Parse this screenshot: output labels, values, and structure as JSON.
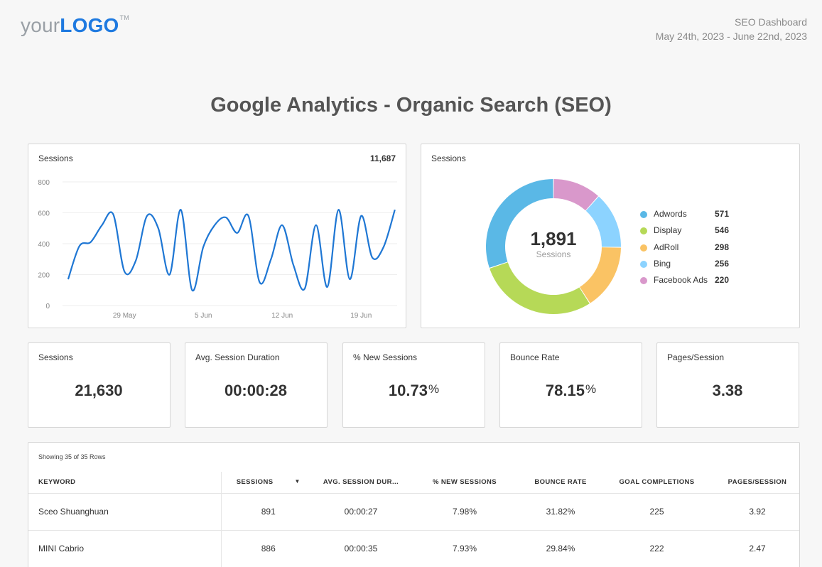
{
  "header": {
    "logo_prefix": "your",
    "logo_brand": "LOGO",
    "logo_tm": "TM",
    "report_title": "SEO Dashboard",
    "date_range": "May 24th, 2023 - June 22nd, 2023"
  },
  "page_title": "Google Analytics - Organic Search (SEO)",
  "sessions_line": {
    "title": "Sessions",
    "total": "11,687",
    "chart_data": {
      "type": "line",
      "x": [
        "2023-05-24",
        "2023-05-25",
        "2023-05-26",
        "2023-05-27",
        "2023-05-28",
        "2023-05-29",
        "2023-05-30",
        "2023-05-31",
        "2023-06-01",
        "2023-06-02",
        "2023-06-03",
        "2023-06-04",
        "2023-06-05",
        "2023-06-06",
        "2023-06-07",
        "2023-06-08",
        "2023-06-09",
        "2023-06-10",
        "2023-06-11",
        "2023-06-12",
        "2023-06-13",
        "2023-06-14",
        "2023-06-15",
        "2023-06-16",
        "2023-06-17",
        "2023-06-18",
        "2023-06-19",
        "2023-06-20",
        "2023-06-21",
        "2023-06-22"
      ],
      "values": [
        170,
        385,
        410,
        520,
        590,
        220,
        290,
        580,
        500,
        200,
        620,
        100,
        380,
        520,
        570,
        470,
        580,
        150,
        300,
        520,
        260,
        110,
        520,
        120,
        620,
        170,
        580,
        310,
        380,
        620
      ],
      "ylim": [
        0,
        800
      ],
      "yticks": [
        "800",
        "600",
        "400",
        "200",
        "0"
      ],
      "xticks": [
        "29 May",
        "5 Jun",
        "12 Jun",
        "19 Jun"
      ],
      "xtick_dates": [
        "2023-05-29",
        "2023-06-05",
        "2023-06-12",
        "2023-06-19"
      ],
      "grid": true,
      "color": "#1f77d4"
    }
  },
  "sessions_donut": {
    "title": "Sessions",
    "center_total": "1,891",
    "center_label": "Sessions",
    "chart_data": {
      "type": "pie",
      "categories": [
        "Adwords",
        "Display",
        "AdRoll",
        "Bing",
        "Facebook Ads"
      ],
      "values": [
        571,
        546,
        298,
        256,
        220
      ],
      "value_labels": [
        "571",
        "546",
        "298",
        "256",
        "220"
      ],
      "colors": [
        "#5ab8e6",
        "#b6d957",
        "#fac364",
        "#8cd3ff",
        "#d998cb"
      ],
      "legend": "right"
    }
  },
  "kpis": [
    {
      "label": "Sessions",
      "value": "21,630",
      "suffix": ""
    },
    {
      "label": "Avg. Session Duration",
      "value": "00:00:28",
      "suffix": ""
    },
    {
      "label": "% New Sessions",
      "value": "10.73",
      "suffix": "%"
    },
    {
      "label": "Bounce Rate",
      "value": "78.15",
      "suffix": "%"
    },
    {
      "label": "Pages/Session",
      "value": "3.38",
      "suffix": ""
    }
  ],
  "table": {
    "info": "Showing 35 of 35 Rows",
    "columns": [
      "KEYWORD",
      "SESSIONS",
      "AVG. SESSION DUR...",
      "% NEW SESSIONS",
      "BOUNCE RATE",
      "GOAL COMPLETIONS",
      "PAGES/SESSION"
    ],
    "sort_indicator": "▼",
    "rows": [
      [
        "Sceo Shuanghuan",
        "891",
        "00:00:27",
        "7.98%",
        "31.82%",
        "225",
        "3.92"
      ],
      [
        "MINI Cabrio",
        "886",
        "00:00:35",
        "7.93%",
        "29.84%",
        "222",
        "2.47"
      ]
    ]
  }
}
